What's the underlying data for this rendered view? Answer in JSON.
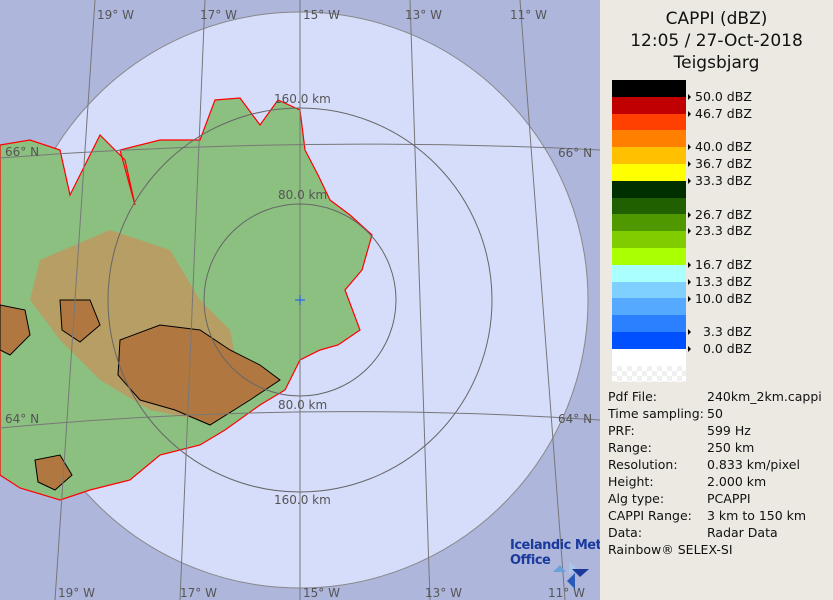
{
  "header": {
    "product": "CAPPI (dBZ)",
    "datetime": "12:05 / 27-Oct-2018",
    "station": "Teigsbjarg"
  },
  "legend": [
    {
      "color": "#000000",
      "label": "50.0 dBZ"
    },
    {
      "color": "#c00000",
      "label": "46.7 dBZ"
    },
    {
      "color": "#ff4000",
      "label": ""
    },
    {
      "color": "#ff8000",
      "label": "40.0 dBZ"
    },
    {
      "color": "#ffc000",
      "label": "36.7 dBZ"
    },
    {
      "color": "#ffff00",
      "label": "33.3 dBZ"
    },
    {
      "color": "#003000",
      "label": ""
    },
    {
      "color": "#206000",
      "label": "26.7 dBZ"
    },
    {
      "color": "#509800",
      "label": "23.3 dBZ"
    },
    {
      "color": "#80cc00",
      "label": ""
    },
    {
      "color": "#aaff00",
      "label": "16.7 dBZ"
    },
    {
      "color": "#aaffff",
      "label": "13.3 dBZ"
    },
    {
      "color": "#80d0ff",
      "label": "10.0 dBZ"
    },
    {
      "color": "#55aaff",
      "label": ""
    },
    {
      "color": "#2a80ff",
      "label": "  3.3 dBZ"
    },
    {
      "color": "#0050ff",
      "label": "  0.0 dBZ"
    },
    {
      "color": "#ffffff",
      "label": ""
    }
  ],
  "info": [
    {
      "key": "Pdf File:",
      "value": "240km_2km.cappi"
    },
    {
      "key": "Time sampling:",
      "value": "50"
    },
    {
      "key": "PRF:",
      "value": "599 Hz"
    },
    {
      "key": "Range:",
      "value": "250 km"
    },
    {
      "key": "Resolution:",
      "value": "0.833 km/pixel"
    },
    {
      "key": "Height:",
      "value": "2.000 km"
    },
    {
      "key": "Alg type:",
      "value": "PCAPPI"
    },
    {
      "key": "CAPPI Range:",
      "value": "3 km to 150 km"
    },
    {
      "key": "Data:",
      "value": "Radar Data"
    }
  ],
  "credit": "Rainbow® SELEX-SI",
  "logo": {
    "line1": "Icelandic Met",
    "line2": "Office"
  },
  "map": {
    "lon_top": [
      "19° W",
      "17° W",
      "15° W",
      "13° W",
      "11° W"
    ],
    "lon_bottom": [
      "19° W",
      "17° W",
      "15° W",
      "13° W",
      "11° W"
    ],
    "lat": [
      "66° N",
      "64° N"
    ],
    "rings": [
      "160.0 km",
      "80.0 km",
      "80.0 km",
      "160.0 km"
    ],
    "colors": {
      "outside": "#aeb6dc",
      "inside": "#d6ddfb",
      "land": "#8cc080",
      "highland": "#c89058",
      "coast": "#ff0000"
    }
  }
}
